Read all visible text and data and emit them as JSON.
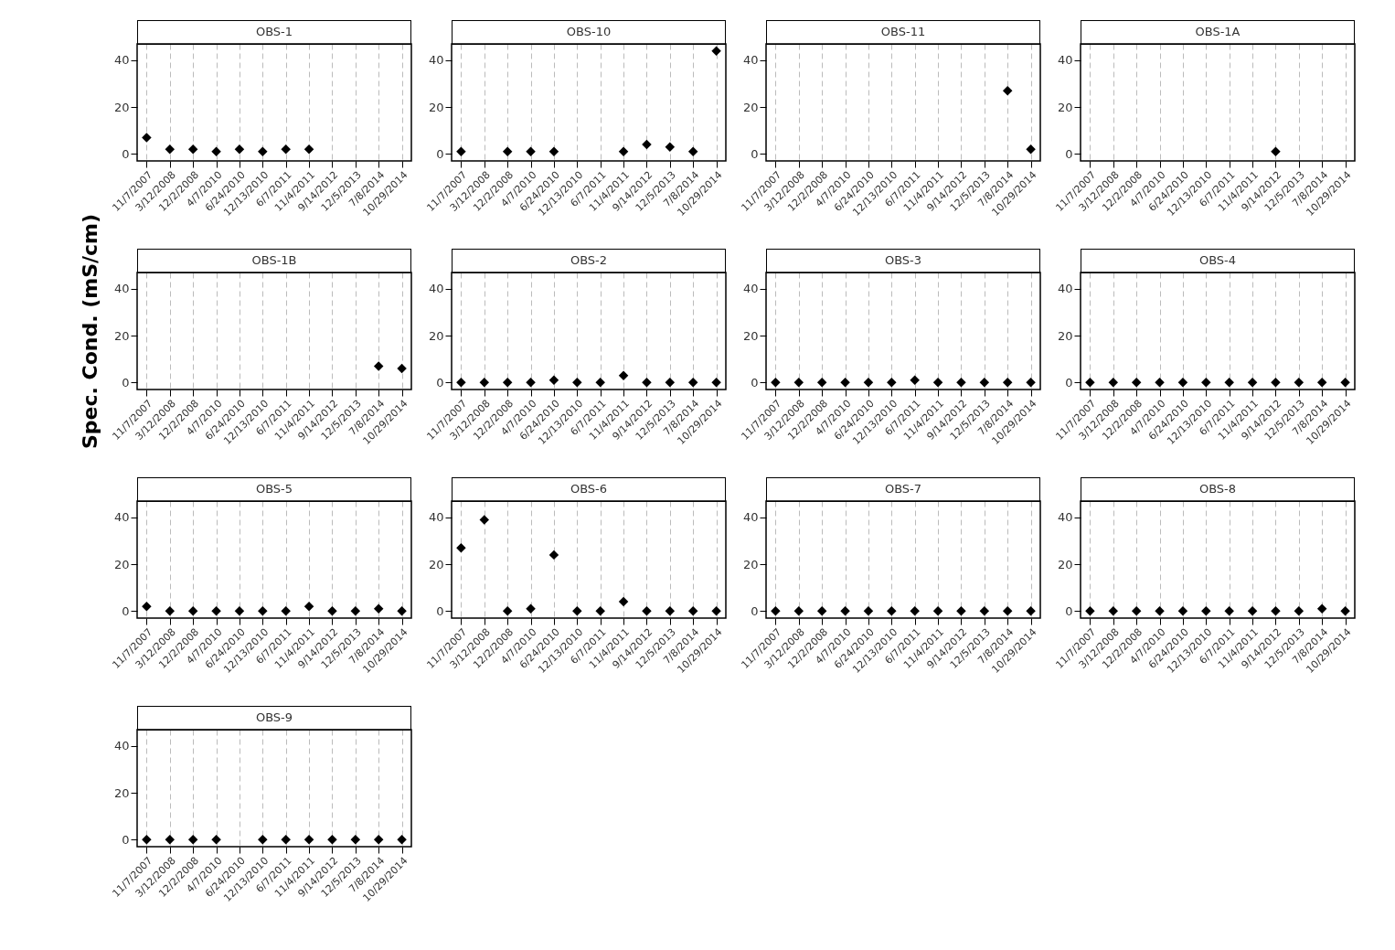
{
  "chart_data": [
    {
      "type": "scatter",
      "title": "OBS-1",
      "categories": [
        "11/7/2007",
        "3/12/2008",
        "12/2/2008",
        "4/7/2010",
        "6/24/2010",
        "12/13/2010",
        "6/7/2011",
        "11/4/2011",
        "9/14/2012",
        "12/5/2013",
        "7/8/2014",
        "10/29/2014"
      ],
      "series": [
        {
          "color": "#000000",
          "values": [
            7,
            2,
            2,
            1,
            2,
            1,
            2,
            2,
            null,
            null,
            null,
            null
          ]
        }
      ],
      "ylim": [
        -3,
        47
      ],
      "yticks": [
        0,
        20,
        40
      ],
      "grid": "x",
      "marker": "diamond"
    },
    {
      "type": "scatter",
      "title": "OBS-10",
      "categories": [
        "11/7/2007",
        "3/12/2008",
        "12/2/2008",
        "4/7/2010",
        "6/24/2010",
        "12/13/2010",
        "6/7/2011",
        "11/4/2011",
        "9/14/2012",
        "12/5/2013",
        "7/8/2014",
        "10/29/2014"
      ],
      "series": [
        {
          "color": "#000000",
          "values": [
            1,
            null,
            1,
            1,
            1,
            null,
            null,
            1,
            4,
            3,
            1,
            44
          ]
        }
      ],
      "ylim": [
        -3,
        47
      ],
      "yticks": [
        0,
        20,
        40
      ],
      "grid": "x",
      "marker": "diamond"
    },
    {
      "type": "scatter",
      "title": "OBS-11",
      "categories": [
        "11/7/2007",
        "3/12/2008",
        "12/2/2008",
        "4/7/2010",
        "6/24/2010",
        "12/13/2010",
        "6/7/2011",
        "11/4/2011",
        "9/14/2012",
        "12/5/2013",
        "7/8/2014",
        "10/29/2014"
      ],
      "series": [
        {
          "color": "#000000",
          "values": [
            null,
            null,
            null,
            null,
            null,
            null,
            null,
            null,
            null,
            null,
            27,
            2
          ]
        }
      ],
      "ylim": [
        -3,
        47
      ],
      "yticks": [
        0,
        20,
        40
      ],
      "grid": "x",
      "marker": "diamond"
    },
    {
      "type": "scatter",
      "title": "OBS-1A",
      "categories": [
        "11/7/2007",
        "3/12/2008",
        "12/2/2008",
        "4/7/2010",
        "6/24/2010",
        "12/13/2010",
        "6/7/2011",
        "11/4/2011",
        "9/14/2012",
        "12/5/2013",
        "7/8/2014",
        "10/29/2014"
      ],
      "series": [
        {
          "color": "#000000",
          "values": [
            null,
            null,
            null,
            null,
            null,
            null,
            null,
            null,
            1,
            null,
            null,
            null
          ]
        }
      ],
      "ylim": [
        -3,
        47
      ],
      "yticks": [
        0,
        20,
        40
      ],
      "grid": "x",
      "marker": "diamond"
    },
    {
      "type": "scatter",
      "title": "OBS-1B",
      "ylabel": "Spec. Cond. (mS/cm)",
      "categories": [
        "11/7/2007",
        "3/12/2008",
        "12/2/2008",
        "4/7/2010",
        "6/24/2010",
        "12/13/2010",
        "6/7/2011",
        "11/4/2011",
        "9/14/2012",
        "12/5/2013",
        "7/8/2014",
        "10/29/2014"
      ],
      "series": [
        {
          "color": "#000000",
          "values": [
            null,
            null,
            null,
            null,
            null,
            null,
            null,
            null,
            null,
            null,
            7,
            6
          ]
        }
      ],
      "ylim": [
        -3,
        47
      ],
      "yticks": [
        0,
        20,
        40
      ],
      "grid": "x",
      "marker": "diamond"
    },
    {
      "type": "scatter",
      "title": "OBS-2",
      "categories": [
        "11/7/2007",
        "3/12/2008",
        "12/2/2008",
        "4/7/2010",
        "6/24/2010",
        "12/13/2010",
        "6/7/2011",
        "11/4/2011",
        "9/14/2012",
        "12/5/2013",
        "7/8/2014",
        "10/29/2014"
      ],
      "series": [
        {
          "color": "#000000",
          "values": [
            0,
            0,
            0,
            0,
            1,
            0,
            0,
            3,
            0,
            0,
            0,
            0
          ]
        }
      ],
      "ylim": [
        -3,
        47
      ],
      "yticks": [
        0,
        20,
        40
      ],
      "grid": "x",
      "marker": "diamond"
    },
    {
      "type": "scatter",
      "title": "OBS-3",
      "categories": [
        "11/7/2007",
        "3/12/2008",
        "12/2/2008",
        "4/7/2010",
        "6/24/2010",
        "12/13/2010",
        "6/7/2011",
        "11/4/2011",
        "9/14/2012",
        "12/5/2013",
        "7/8/2014",
        "10/29/2014"
      ],
      "series": [
        {
          "color": "#000000",
          "values": [
            0,
            0,
            0,
            0,
            0,
            0,
            1,
            0,
            0,
            0,
            0,
            0
          ]
        }
      ],
      "ylim": [
        -3,
        47
      ],
      "yticks": [
        0,
        20,
        40
      ],
      "grid": "x",
      "marker": "diamond"
    },
    {
      "type": "scatter",
      "title": "OBS-4",
      "categories": [
        "11/7/2007",
        "3/12/2008",
        "12/2/2008",
        "4/7/2010",
        "6/24/2010",
        "12/13/2010",
        "6/7/2011",
        "11/4/2011",
        "9/14/2012",
        "12/5/2013",
        "7/8/2014",
        "10/29/2014"
      ],
      "series": [
        {
          "color": "#000000",
          "values": [
            0,
            0,
            0,
            0,
            0,
            0,
            0,
            0,
            0,
            0,
            0,
            0
          ]
        }
      ],
      "ylim": [
        -3,
        47
      ],
      "yticks": [
        0,
        20,
        40
      ],
      "grid": "x",
      "marker": "diamond"
    },
    {
      "type": "scatter",
      "title": "OBS-5",
      "categories": [
        "11/7/2007",
        "3/12/2008",
        "12/2/2008",
        "4/7/2010",
        "6/24/2010",
        "12/13/2010",
        "6/7/2011",
        "11/4/2011",
        "9/14/2012",
        "12/5/2013",
        "7/8/2014",
        "10/29/2014"
      ],
      "series": [
        {
          "color": "#000000",
          "values": [
            2,
            0,
            0,
            0,
            0,
            0,
            0,
            2,
            0,
            0,
            1,
            0
          ]
        }
      ],
      "ylim": [
        -3,
        47
      ],
      "yticks": [
        0,
        20,
        40
      ],
      "grid": "x",
      "marker": "diamond"
    },
    {
      "type": "scatter",
      "title": "OBS-6",
      "categories": [
        "11/7/2007",
        "3/12/2008",
        "12/2/2008",
        "4/7/2010",
        "6/24/2010",
        "12/13/2010",
        "6/7/2011",
        "11/4/2011",
        "9/14/2012",
        "12/5/2013",
        "7/8/2014",
        "10/29/2014"
      ],
      "series": [
        {
          "color": "#000000",
          "values": [
            27,
            39,
            0,
            1,
            24,
            0,
            0,
            4,
            0,
            0,
            0,
            0
          ]
        }
      ],
      "ylim": [
        -3,
        47
      ],
      "yticks": [
        0,
        20,
        40
      ],
      "grid": "x",
      "marker": "diamond"
    },
    {
      "type": "scatter",
      "title": "OBS-7",
      "categories": [
        "11/7/2007",
        "3/12/2008",
        "12/2/2008",
        "4/7/2010",
        "6/24/2010",
        "12/13/2010",
        "6/7/2011",
        "11/4/2011",
        "9/14/2012",
        "12/5/2013",
        "7/8/2014",
        "10/29/2014"
      ],
      "series": [
        {
          "color": "#000000",
          "values": [
            0,
            0,
            0,
            0,
            0,
            0,
            0,
            0,
            0,
            0,
            0,
            0
          ]
        }
      ],
      "ylim": [
        -3,
        47
      ],
      "yticks": [
        0,
        20,
        40
      ],
      "grid": "x",
      "marker": "diamond"
    },
    {
      "type": "scatter",
      "title": "OBS-8",
      "categories": [
        "11/7/2007",
        "3/12/2008",
        "12/2/2008",
        "4/7/2010",
        "6/24/2010",
        "12/13/2010",
        "6/7/2011",
        "11/4/2011",
        "9/14/2012",
        "12/5/2013",
        "7/8/2014",
        "10/29/2014"
      ],
      "series": [
        {
          "color": "#000000",
          "values": [
            0,
            0,
            0,
            0,
            0,
            0,
            0,
            0,
            0,
            0,
            1,
            0
          ]
        }
      ],
      "ylim": [
        -3,
        47
      ],
      "yticks": [
        0,
        20,
        40
      ],
      "grid": "x",
      "marker": "diamond"
    },
    {
      "type": "scatter",
      "title": "OBS-9",
      "categories": [
        "11/7/2007",
        "3/12/2008",
        "12/2/2008",
        "4/7/2010",
        "6/24/2010",
        "12/13/2010",
        "6/7/2011",
        "11/4/2011",
        "9/14/2012",
        "12/5/2013",
        "7/8/2014",
        "10/29/2014"
      ],
      "series": [
        {
          "color": "#000000",
          "values": [
            0,
            0,
            0,
            0,
            null,
            0,
            0,
            0,
            0,
            0,
            0,
            0
          ]
        }
      ],
      "ylim": [
        -3,
        47
      ],
      "yticks": [
        0,
        20,
        40
      ],
      "grid": "x",
      "marker": "diamond"
    }
  ]
}
